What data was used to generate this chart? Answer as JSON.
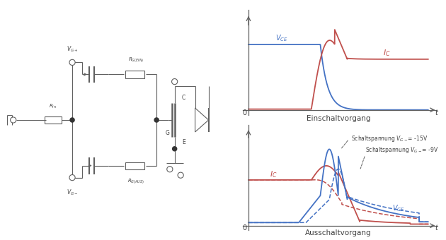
{
  "fig_width": 6.3,
  "fig_height": 3.4,
  "dpi": 100,
  "bg_color": "#ffffff",
  "blue": "#4472c4",
  "red": "#c0504d",
  "line_color": "#606060",
  "text_color": "#404040",
  "top_graph": {
    "xlabel": "Einschaltvorgang"
  },
  "bottom_graph": {
    "xlabel": "Ausschaltvorgang",
    "ann1": "Schaltspannung V",
    "ann1_val": "= -15V",
    "ann2": "Schaltspannung V",
    "ann2_val": "= -9V"
  }
}
